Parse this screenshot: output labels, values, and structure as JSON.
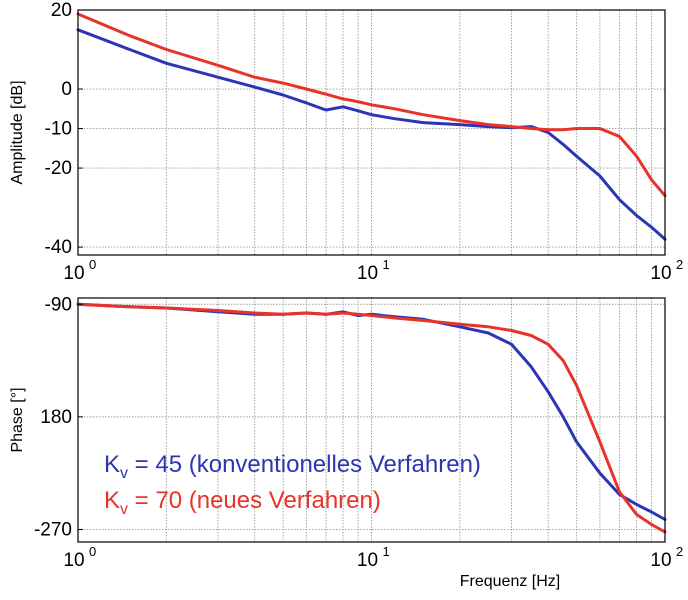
{
  "chart_data": [
    {
      "type": "line",
      "xscale": "log",
      "xlim": [
        1,
        100
      ],
      "ylim": [
        -42,
        20
      ],
      "ylabel": "Amplitude [dB]",
      "yticks": [
        "20",
        "0",
        "-10",
        "-20",
        "-40"
      ],
      "xticks": [
        {
          "base": "10",
          "exp": "0"
        },
        {
          "base": "10",
          "exp": "1"
        },
        {
          "base": "10",
          "exp": "2"
        }
      ],
      "grid": true,
      "series": [
        {
          "color": "#2b35b5",
          "x": [
            1,
            1.5,
            2,
            3,
            4,
            5,
            6,
            7,
            8,
            9,
            10,
            12,
            15,
            20,
            25,
            30,
            35,
            40,
            45,
            50,
            60,
            70,
            80,
            90,
            100
          ],
          "y": [
            15,
            10,
            6.5,
            3,
            0.5,
            -1.5,
            -3.5,
            -5.3,
            -4.5,
            -5.5,
            -6.5,
            -7.5,
            -8.5,
            -9.0,
            -9.5,
            -9.8,
            -9.5,
            -11,
            -14,
            -17,
            -22,
            -28,
            -32,
            -35,
            -38
          ]
        },
        {
          "color": "#e8322a",
          "x": [
            1,
            1.5,
            2,
            3,
            4,
            5,
            6,
            7,
            8,
            9,
            10,
            12,
            15,
            20,
            25,
            30,
            35,
            40,
            45,
            50,
            60,
            70,
            80,
            90,
            100
          ],
          "y": [
            19,
            13.5,
            10,
            6,
            3,
            1.5,
            0,
            -1.3,
            -2.5,
            -3.2,
            -4,
            -5,
            -6.5,
            -8,
            -9,
            -9.5,
            -10,
            -10.3,
            -10.3,
            -10,
            -10,
            -12,
            -17,
            -23,
            -27
          ]
        }
      ]
    },
    {
      "type": "line",
      "xscale": "log",
      "xlim": [
        1,
        100
      ],
      "ylim": [
        -280,
        -85
      ],
      "ylabel": "Phase [°]",
      "yticks": [
        "-90",
        "180",
        "-270"
      ],
      "xticks": [
        {
          "base": "10",
          "exp": "0"
        },
        {
          "base": "10",
          "exp": "1"
        },
        {
          "base": "10",
          "exp": "2"
        }
      ],
      "xlabel": "Frequenz [Hz]",
      "grid": true,
      "legend": [
        {
          "symbol": "K",
          "sub": "v",
          "text": " = 45 (konventionelles Verfahren)",
          "color": "#2b35b5"
        },
        {
          "symbol": "K",
          "sub": "v",
          "text": " = 70  (neues Verfahren)",
          "color": "#e8322a"
        }
      ],
      "series": [
        {
          "color": "#2b35b5",
          "x": [
            1,
            1.5,
            2,
            3,
            4,
            5,
            6,
            7,
            8,
            9,
            10,
            12,
            15,
            20,
            25,
            30,
            35,
            40,
            45,
            50,
            60,
            70,
            80,
            90,
            100
          ],
          "y": [
            -90,
            -92,
            -93,
            -96,
            -98,
            -98,
            -97,
            -98,
            -96,
            -99,
            -98,
            -100,
            -102,
            -108,
            -113,
            -122,
            -140,
            -160,
            -180,
            -200,
            -225,
            -242,
            -250,
            -256,
            -262
          ]
        },
        {
          "color": "#e8322a",
          "x": [
            1,
            1.5,
            2,
            3,
            4,
            5,
            6,
            7,
            8,
            9,
            10,
            12,
            15,
            20,
            25,
            30,
            35,
            40,
            45,
            50,
            60,
            70,
            80,
            90,
            100
          ],
          "y": [
            -90,
            -92,
            -93,
            -95,
            -97,
            -98,
            -97,
            -98,
            -97,
            -98,
            -99,
            -101,
            -103,
            -106,
            -108,
            -111,
            -115,
            -122,
            -135,
            -155,
            -200,
            -240,
            -258,
            -266,
            -272
          ]
        }
      ]
    }
  ]
}
